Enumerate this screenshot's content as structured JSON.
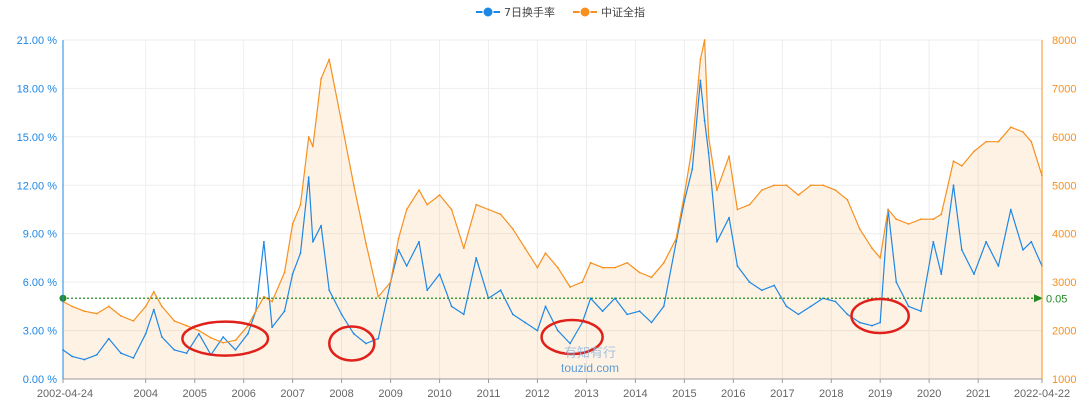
{
  "chart_data": {
    "type": "line",
    "legend": {
      "position": "top-center"
    },
    "series": [
      {
        "name": "7日换手率",
        "axis": "left",
        "unit": "%",
        "color": "#1e88e5",
        "points": [
          [
            "2002-04-24",
            1.8
          ],
          [
            "2002-07-01",
            1.4
          ],
          [
            "2002-10-01",
            1.2
          ],
          [
            "2003-01-01",
            1.5
          ],
          [
            "2003-04-01",
            2.5
          ],
          [
            "2003-07-01",
            1.6
          ],
          [
            "2003-10-01",
            1.3
          ],
          [
            "2004-01-01",
            2.8
          ],
          [
            "2004-03-01",
            4.3
          ],
          [
            "2004-05-01",
            2.6
          ],
          [
            "2004-08-01",
            1.8
          ],
          [
            "2004-11-01",
            1.6
          ],
          [
            "2005-02-01",
            2.8
          ],
          [
            "2005-05-01",
            1.5
          ],
          [
            "2005-08-01",
            2.6
          ],
          [
            "2005-11-01",
            1.8
          ],
          [
            "2006-02-01",
            2.8
          ],
          [
            "2006-04-01",
            4.2
          ],
          [
            "2006-06-01",
            8.5
          ],
          [
            "2006-08-01",
            3.2
          ],
          [
            "2006-11-01",
            4.2
          ],
          [
            "2007-01-01",
            6.5
          ],
          [
            "2007-03-01",
            7.8
          ],
          [
            "2007-05-01",
            12.5
          ],
          [
            "2007-06-01",
            8.5
          ],
          [
            "2007-08-01",
            9.5
          ],
          [
            "2007-10-01",
            5.5
          ],
          [
            "2008-01-01",
            4.0
          ],
          [
            "2008-04-01",
            2.8
          ],
          [
            "2008-07-01",
            2.2
          ],
          [
            "2008-10-01",
            2.5
          ],
          [
            "2009-01-01",
            6.0
          ],
          [
            "2009-03-01",
            8.0
          ],
          [
            "2009-05-01",
            7.0
          ],
          [
            "2009-08-01",
            8.5
          ],
          [
            "2009-10-01",
            5.5
          ],
          [
            "2010-01-01",
            6.5
          ],
          [
            "2010-04-01",
            4.5
          ],
          [
            "2010-07-01",
            4.0
          ],
          [
            "2010-10-01",
            7.5
          ],
          [
            "2011-01-01",
            5.0
          ],
          [
            "2011-04-01",
            5.5
          ],
          [
            "2011-07-01",
            4.0
          ],
          [
            "2011-10-01",
            3.5
          ],
          [
            "2012-01-01",
            3.0
          ],
          [
            "2012-03-01",
            4.5
          ],
          [
            "2012-06-01",
            3.0
          ],
          [
            "2012-09-01",
            2.2
          ],
          [
            "2012-12-01",
            3.5
          ],
          [
            "2013-02-01",
            5.0
          ],
          [
            "2013-05-01",
            4.2
          ],
          [
            "2013-08-01",
            5.0
          ],
          [
            "2013-11-01",
            4.0
          ],
          [
            "2014-02-01",
            4.2
          ],
          [
            "2014-05-01",
            3.5
          ],
          [
            "2014-08-01",
            4.5
          ],
          [
            "2014-11-01",
            8.5
          ],
          [
            "2015-01-01",
            11.0
          ],
          [
            "2015-03-01",
            13.0
          ],
          [
            "2015-05-01",
            18.5
          ],
          [
            "2015-06-01",
            16.0
          ],
          [
            "2015-07-01",
            14.0
          ],
          [
            "2015-09-01",
            8.5
          ],
          [
            "2015-12-01",
            10.0
          ],
          [
            "2016-02-01",
            7.0
          ],
          [
            "2016-05-01",
            6.0
          ],
          [
            "2016-08-01",
            5.5
          ],
          [
            "2016-11-01",
            5.8
          ],
          [
            "2017-02-01",
            4.5
          ],
          [
            "2017-05-01",
            4.0
          ],
          [
            "2017-08-01",
            4.5
          ],
          [
            "2017-11-01",
            5.0
          ],
          [
            "2018-02-01",
            4.8
          ],
          [
            "2018-05-01",
            4.0
          ],
          [
            "2018-08-01",
            3.5
          ],
          [
            "2018-11-01",
            3.3
          ],
          [
            "2019-01-01",
            3.5
          ],
          [
            "2019-03-01",
            10.5
          ],
          [
            "2019-05-01",
            6.0
          ],
          [
            "2019-08-01",
            4.5
          ],
          [
            "2019-11-01",
            4.2
          ],
          [
            "2020-02-01",
            8.5
          ],
          [
            "2020-04-01",
            6.5
          ],
          [
            "2020-07-01",
            12.0
          ],
          [
            "2020-09-01",
            8.0
          ],
          [
            "2020-12-01",
            6.5
          ],
          [
            "2021-03-01",
            8.5
          ],
          [
            "2021-06-01",
            7.0
          ],
          [
            "2021-09-01",
            10.5
          ],
          [
            "2021-12-01",
            8.0
          ],
          [
            "2022-02-01",
            8.5
          ],
          [
            "2022-04-22",
            7.0
          ]
        ]
      },
      {
        "name": "中证全指",
        "axis": "right",
        "color": "#f7901e",
        "points": [
          [
            "2002-04-24",
            2600
          ],
          [
            "2002-07-01",
            2500
          ],
          [
            "2002-10-01",
            2400
          ],
          [
            "2003-01-01",
            2350
          ],
          [
            "2003-04-01",
            2500
          ],
          [
            "2003-07-01",
            2300
          ],
          [
            "2003-10-01",
            2200
          ],
          [
            "2004-01-01",
            2500
          ],
          [
            "2004-03-01",
            2800
          ],
          [
            "2004-05-01",
            2500
          ],
          [
            "2004-08-01",
            2200
          ],
          [
            "2004-11-01",
            2100
          ],
          [
            "2005-02-01",
            2000
          ],
          [
            "2005-05-01",
            1850
          ],
          [
            "2005-08-01",
            1750
          ],
          [
            "2005-11-01",
            1800
          ],
          [
            "2006-02-01",
            2100
          ],
          [
            "2006-04-01",
            2400
          ],
          [
            "2006-06-01",
            2700
          ],
          [
            "2006-08-01",
            2600
          ],
          [
            "2006-11-01",
            3200
          ],
          [
            "2007-01-01",
            4200
          ],
          [
            "2007-03-01",
            4600
          ],
          [
            "2007-05-01",
            6000
          ],
          [
            "2007-06-01",
            5800
          ],
          [
            "2007-08-01",
            7200
          ],
          [
            "2007-10-01",
            7600
          ],
          [
            "2008-01-01",
            6300
          ],
          [
            "2008-04-01",
            5000
          ],
          [
            "2008-07-01",
            3800
          ],
          [
            "2008-10-01",
            2700
          ],
          [
            "2009-01-01",
            3000
          ],
          [
            "2009-03-01",
            3900
          ],
          [
            "2009-05-01",
            4500
          ],
          [
            "2009-08-01",
            4900
          ],
          [
            "2009-10-01",
            4600
          ],
          [
            "2010-01-01",
            4800
          ],
          [
            "2010-04-01",
            4500
          ],
          [
            "2010-07-01",
            3700
          ],
          [
            "2010-10-01",
            4600
          ],
          [
            "2011-01-01",
            4500
          ],
          [
            "2011-04-01",
            4400
          ],
          [
            "2011-07-01",
            4100
          ],
          [
            "2011-10-01",
            3700
          ],
          [
            "2012-01-01",
            3300
          ],
          [
            "2012-03-01",
            3600
          ],
          [
            "2012-06-01",
            3300
          ],
          [
            "2012-09-01",
            2900
          ],
          [
            "2012-12-01",
            3000
          ],
          [
            "2013-02-01",
            3400
          ],
          [
            "2013-05-01",
            3300
          ],
          [
            "2013-08-01",
            3300
          ],
          [
            "2013-11-01",
            3400
          ],
          [
            "2014-02-01",
            3200
          ],
          [
            "2014-05-01",
            3100
          ],
          [
            "2014-08-01",
            3400
          ],
          [
            "2014-11-01",
            3900
          ],
          [
            "2015-01-01",
            4800
          ],
          [
            "2015-03-01",
            5800
          ],
          [
            "2015-05-01",
            7600
          ],
          [
            "2015-06-01",
            8000
          ],
          [
            "2015-07-01",
            6000
          ],
          [
            "2015-09-01",
            4900
          ],
          [
            "2015-12-01",
            5600
          ],
          [
            "2016-02-01",
            4500
          ],
          [
            "2016-05-01",
            4600
          ],
          [
            "2016-08-01",
            4900
          ],
          [
            "2016-11-01",
            5000
          ],
          [
            "2017-02-01",
            5000
          ],
          [
            "2017-05-01",
            4800
          ],
          [
            "2017-08-01",
            5000
          ],
          [
            "2017-11-01",
            5000
          ],
          [
            "2018-02-01",
            4900
          ],
          [
            "2018-05-01",
            4700
          ],
          [
            "2018-08-01",
            4100
          ],
          [
            "2018-11-01",
            3700
          ],
          [
            "2019-01-01",
            3500
          ],
          [
            "2019-03-01",
            4500
          ],
          [
            "2019-05-01",
            4300
          ],
          [
            "2019-08-01",
            4200
          ],
          [
            "2019-11-01",
            4300
          ],
          [
            "2020-02-01",
            4300
          ],
          [
            "2020-04-01",
            4400
          ],
          [
            "2020-07-01",
            5500
          ],
          [
            "2020-09-01",
            5400
          ],
          [
            "2020-12-01",
            5700
          ],
          [
            "2021-03-01",
            5900
          ],
          [
            "2021-06-01",
            5900
          ],
          [
            "2021-09-01",
            6200
          ],
          [
            "2021-12-01",
            6100
          ],
          [
            "2022-02-01",
            5900
          ],
          [
            "2022-04-22",
            5200
          ]
        ]
      }
    ],
    "reference_line": {
      "value": 5.0,
      "label": "0.05",
      "color": "#228b22"
    },
    "left_axis": {
      "ylim": [
        0,
        21
      ],
      "ticks": [
        "0.00 %",
        "3.00 %",
        "6.00 %",
        "9.00 %",
        "12.00 %",
        "15.00 %",
        "18.00 %",
        "21.00 %"
      ]
    },
    "right_axis": {
      "ylim": [
        1000,
        8000
      ],
      "ticks": [
        "1000",
        "2000",
        "3000",
        "4000",
        "5000",
        "6000",
        "7000",
        "8000"
      ]
    },
    "x_axis": {
      "start": "2002-04-24",
      "end": "2022-04-22",
      "ticks": [
        "2002-04-24",
        "2004",
        "2005",
        "2006",
        "2007",
        "2008",
        "2009",
        "2010",
        "2011",
        "2012",
        "2013",
        "2014",
        "2015",
        "2016",
        "2017",
        "2018",
        "2019",
        "2020",
        "2021",
        "2022-04-22"
      ]
    },
    "grid": true,
    "highlights": [
      {
        "from": "2004-10-01",
        "to": "2006-07-01",
        "level": 2.5
      },
      {
        "from": "2007-10-01",
        "to": "2008-09-01",
        "level": 2.2
      },
      {
        "from": "2012-02-01",
        "to": "2013-05-01",
        "level": 2.6
      },
      {
        "from": "2018-06-01",
        "to": "2019-08-01",
        "level": 3.9
      }
    ],
    "highlight_color": "#e0201a"
  },
  "watermark": {
    "brand": "有知有行",
    "site": "touzid.com"
  }
}
